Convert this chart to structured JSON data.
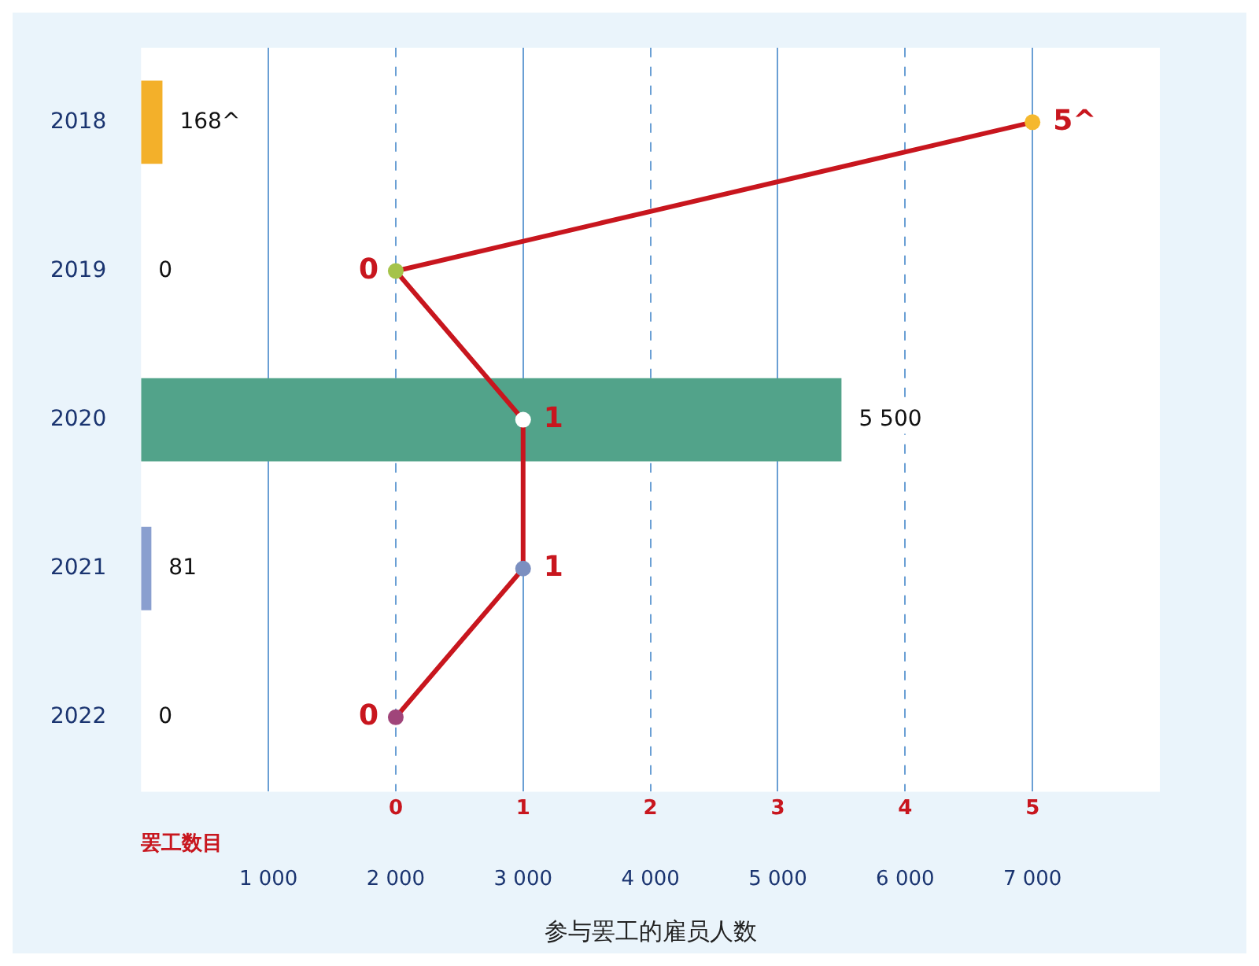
{
  "chart_data": {
    "type": "bar",
    "orientation": "horizontal",
    "categories": [
      "2018",
      "2019",
      "2020",
      "2021",
      "2022"
    ],
    "xlabel": "参与罢工的雇员人数",
    "x2label": "罢工数目",
    "xlim": [
      0,
      8000
    ],
    "xticks": [
      1000,
      2000,
      3000,
      4000,
      5000,
      6000,
      7000
    ],
    "x2lim": [
      -2,
      6
    ],
    "x2ticks": [
      0,
      1,
      2,
      3,
      4,
      5
    ],
    "grid": "x",
    "legend": false,
    "marker": "circle",
    "series": [
      {
        "values": [
          168,
          0,
          5500,
          81,
          0
        ],
        "colors": [
          "#f3b02a",
          "#9cc04a",
          "#52a38a",
          "#8a9fcf",
          "#a0457a"
        ],
        "value_labels": [
          "168^",
          "0",
          "5 500",
          "81",
          "0"
        ]
      },
      {
        "type": "line",
        "axis": "x2",
        "color": "#c8161e",
        "colors": [
          "#f5b82e",
          "#a5c34a",
          "#ffffff",
          "#7b8fc0",
          "#a0457a"
        ],
        "values": [
          5,
          0,
          1,
          1,
          0
        ],
        "value_labels": [
          "5^",
          "0",
          "1",
          "1",
          "0"
        ]
      }
    ]
  }
}
